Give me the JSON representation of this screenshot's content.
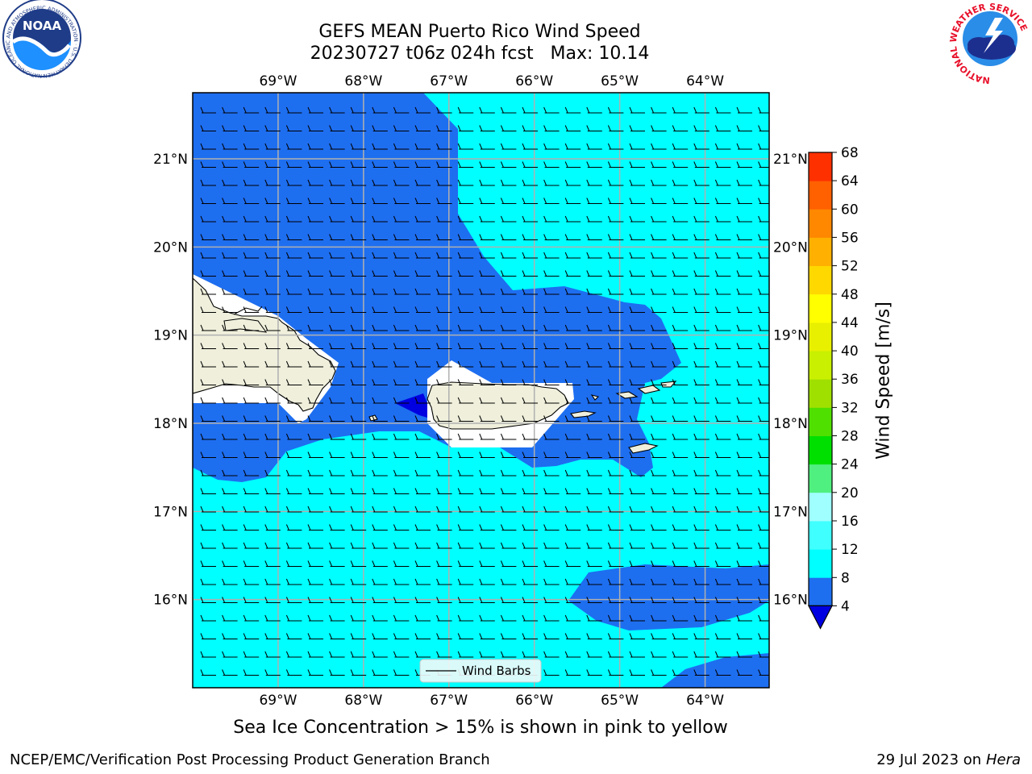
{
  "header": {
    "title_line1": "GEFS MEAN Puerto Rico Wind Speed",
    "title_line2": "20230727 t06z 024h fcst   Max: 10.14"
  },
  "logos": {
    "noaa": {
      "text": "NOAA",
      "ring_text": "NATIONAL OCEANIC AND ATMOSPHERIC ADMINISTRATION · U.S. DEPARTMENT OF COMMERCE ·"
    },
    "nws": {
      "ring_text": "NATIONAL WEATHER SERVICE"
    }
  },
  "map": {
    "lon_range": [
      -70.0,
      -63.25
    ],
    "lat_range": [
      15.0,
      21.75
    ],
    "lon_labels": [
      "69°W",
      "68°W",
      "67°W",
      "66°W",
      "65°W",
      "64°W"
    ],
    "lat_labels": [
      "21°N",
      "20°N",
      "19°N",
      "18°N",
      "17°N",
      "16°N"
    ],
    "legend_label": "Wind Barbs",
    "colors": {
      "4-8": "#1e6ef0",
      "8-12": "#00ffff",
      "below-4": "#0000e0",
      "land": "#efefdc"
    }
  },
  "colorbar": {
    "label": "Wind Speed [m/s]",
    "ticks": [
      "4",
      "8",
      "12",
      "16",
      "20",
      "24",
      "28",
      "32",
      "36",
      "40",
      "44",
      "48",
      "52",
      "56",
      "60",
      "64",
      "68"
    ],
    "colors": [
      "#1e6ef0",
      "#00ffff",
      "#40ffff",
      "#a0ffff",
      "#50f080",
      "#00e000",
      "#50e000",
      "#a0e000",
      "#c8f000",
      "#e8f000",
      "#ffff00",
      "#ffd800",
      "#ffb000",
      "#ff8800",
      "#ff6000",
      "#ff3000",
      "#ff0000"
    ],
    "extend_color": "#0000e0"
  },
  "footer": {
    "caption": "Sea Ice Concentration > 15% is shown in pink to yellow",
    "left": "NCEP/EMC/Verification Post Processing Product Generation Branch",
    "right_date": "29 Jul 2023 on",
    "right_host": "Hera"
  }
}
